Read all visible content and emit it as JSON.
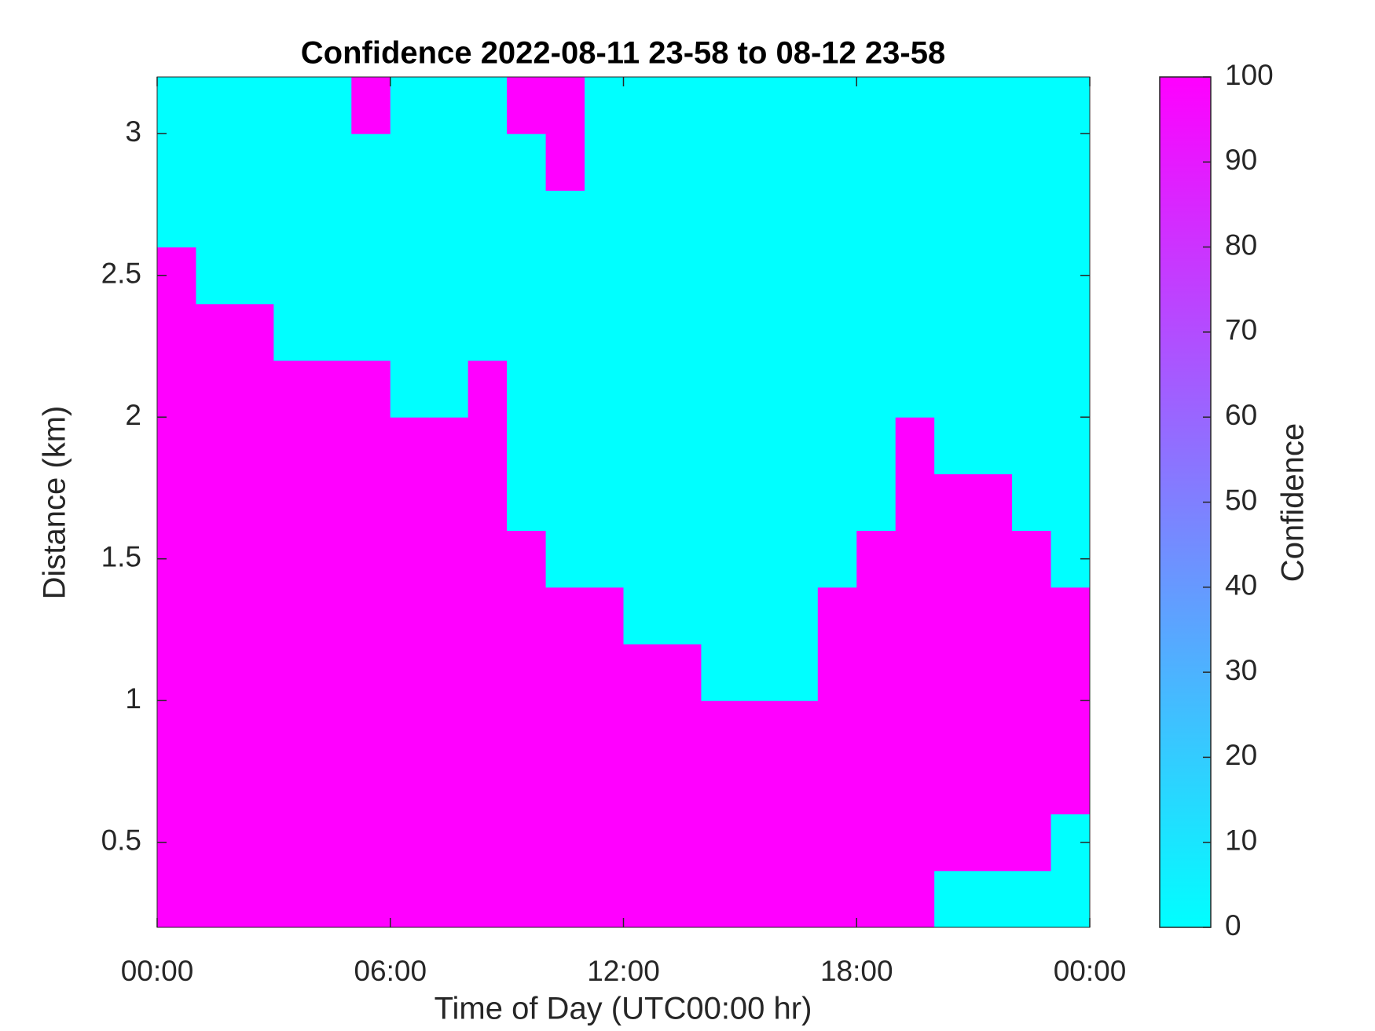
{
  "chart_data": {
    "type": "heatmap",
    "title": "Confidence 2022-08-11 23-58 to 08-12 23-58",
    "x_label": "Time of Day (UTC00:00 hr)",
    "y_label": "Distance (km)",
    "colorbar_label": "Confidence",
    "colormap": [
      "#00ffff",
      "#ff00ff"
    ],
    "x_edges": [
      0,
      1,
      2,
      3,
      4,
      5,
      6,
      7,
      8,
      9,
      10,
      11,
      12,
      13,
      14,
      15,
      16,
      17,
      18,
      19,
      20,
      21,
      22,
      23,
      24
    ],
    "y_edges": [
      0.2,
      0.4,
      0.6,
      0.8,
      1.0,
      1.2,
      1.4,
      1.6,
      1.8,
      2.0,
      2.2,
      2.4,
      2.6,
      2.8,
      3.0,
      3.2
    ],
    "z": [
      [
        100,
        100,
        100,
        100,
        100,
        100,
        100,
        100,
        100,
        100,
        100,
        100,
        100,
        100,
        100,
        100,
        100,
        100,
        100,
        100,
        0,
        0,
        0,
        0
      ],
      [
        100,
        100,
        100,
        100,
        100,
        100,
        100,
        100,
        100,
        100,
        100,
        100,
        100,
        100,
        100,
        100,
        100,
        100,
        100,
        100,
        100,
        100,
        100,
        0
      ],
      [
        100,
        100,
        100,
        100,
        100,
        100,
        100,
        100,
        100,
        100,
        100,
        100,
        100,
        100,
        100,
        100,
        100,
        100,
        100,
        100,
        100,
        100,
        100,
        100
      ],
      [
        100,
        100,
        100,
        100,
        100,
        100,
        100,
        100,
        100,
        100,
        100,
        100,
        100,
        100,
        100,
        100,
        100,
        100,
        100,
        100,
        100,
        100,
        100,
        100
      ],
      [
        100,
        100,
        100,
        100,
        100,
        100,
        100,
        100,
        100,
        100,
        100,
        100,
        100,
        100,
        0,
        0,
        0,
        100,
        100,
        100,
        100,
        100,
        100,
        100
      ],
      [
        100,
        100,
        100,
        100,
        100,
        100,
        100,
        100,
        100,
        100,
        100,
        100,
        0,
        0,
        0,
        0,
        0,
        100,
        100,
        100,
        100,
        100,
        100,
        100
      ],
      [
        100,
        100,
        100,
        100,
        100,
        100,
        100,
        100,
        100,
        100,
        0,
        0,
        0,
        0,
        0,
        0,
        0,
        0,
        100,
        100,
        100,
        100,
        100,
        0
      ],
      [
        100,
        100,
        100,
        100,
        100,
        100,
        100,
        100,
        100,
        0,
        0,
        0,
        0,
        0,
        0,
        0,
        0,
        0,
        0,
        100,
        100,
        100,
        0,
        0
      ],
      [
        100,
        100,
        100,
        100,
        100,
        100,
        100,
        100,
        100,
        0,
        0,
        0,
        0,
        0,
        0,
        0,
        0,
        0,
        0,
        100,
        0,
        0,
        0,
        0
      ],
      [
        100,
        100,
        100,
        100,
        100,
        100,
        0,
        0,
        100,
        0,
        0,
        0,
        0,
        0,
        0,
        0,
        0,
        0,
        0,
        0,
        0,
        0,
        0,
        0
      ],
      [
        100,
        100,
        100,
        0,
        0,
        0,
        0,
        0,
        0,
        0,
        0,
        0,
        0,
        0,
        0,
        0,
        0,
        0,
        0,
        0,
        0,
        0,
        0,
        0
      ],
      [
        100,
        0,
        0,
        0,
        0,
        0,
        0,
        0,
        0,
        0,
        0,
        0,
        0,
        0,
        0,
        0,
        0,
        0,
        0,
        0,
        0,
        0,
        0,
        0
      ],
      [
        0,
        0,
        0,
        0,
        0,
        0,
        0,
        0,
        0,
        0,
        0,
        0,
        0,
        0,
        0,
        0,
        0,
        0,
        0,
        0,
        0,
        0,
        0,
        0
      ],
      [
        0,
        0,
        0,
        0,
        0,
        0,
        0,
        0,
        0,
        0,
        100,
        0,
        0,
        0,
        0,
        0,
        0,
        0,
        0,
        0,
        0,
        0,
        0,
        0
      ],
      [
        0,
        0,
        0,
        0,
        0,
        100,
        0,
        0,
        0,
        100,
        100,
        0,
        0,
        0,
        0,
        0,
        0,
        0,
        0,
        0,
        0,
        0,
        0,
        0
      ]
    ],
    "xlim": [
      0,
      24
    ],
    "xticks": [
      {
        "value": 0,
        "label": "00:00"
      },
      {
        "value": 6,
        "label": "06:00"
      },
      {
        "value": 12,
        "label": "12:00"
      },
      {
        "value": 18,
        "label": "18:00"
      },
      {
        "value": 24,
        "label": "00:00"
      }
    ],
    "ylim": [
      0.2,
      3.2
    ],
    "yticks": [
      0.5,
      1,
      1.5,
      2,
      2.5,
      3
    ],
    "clim": [
      0,
      100
    ],
    "cticks": [
      0,
      10,
      20,
      30,
      40,
      50,
      60,
      70,
      80,
      90,
      100
    ]
  }
}
